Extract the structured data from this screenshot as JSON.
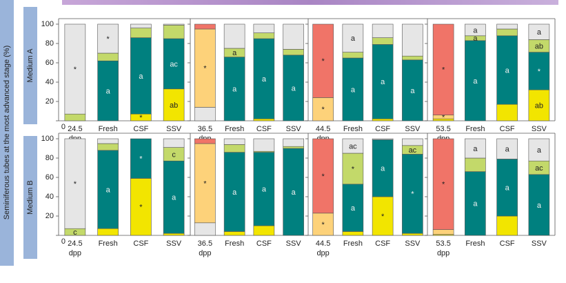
{
  "figure": {
    "y_label": "Seminiferous tubes at the most advanced stage (%)",
    "rows": [
      "Medium A",
      "Medium B"
    ]
  },
  "chart_data": [
    {
      "type": "bar",
      "stacked": true,
      "categories": [
        "24.5 dpp",
        "Fresh",
        "CSF",
        "SSV"
      ],
      "ylim": [
        0,
        100
      ],
      "yticks": [
        0,
        20,
        40,
        60,
        80,
        100
      ],
      "series": [
        {
          "color": "#f2e500",
          "values": [
            0,
            0,
            7,
            33
          ],
          "notes": [
            null,
            null,
            "*",
            "ab"
          ]
        },
        {
          "color": "#e6e6e6",
          "values": [
            0,
            0,
            0,
            0
          ],
          "notes": [
            null,
            null,
            null,
            null
          ]
        },
        {
          "color": "#fdd27a",
          "values": [
            0,
            0,
            0,
            0
          ],
          "notes": [
            null,
            null,
            null,
            null
          ]
        },
        {
          "color": "#f07468",
          "values": [
            0,
            0,
            0,
            0
          ],
          "notes": [
            null,
            null,
            null,
            null
          ]
        },
        {
          "color": "#00807f",
          "values": [
            0,
            62,
            79,
            52
          ],
          "notes": [
            null,
            "a",
            "a",
            "ac"
          ]
        },
        {
          "color": "#c3d96a",
          "values": [
            7,
            8,
            10,
            14
          ],
          "notes": [
            null,
            null,
            null,
            null
          ]
        },
        {
          "color": "#e6e6e6",
          "values": [
            93,
            30,
            4,
            1
          ],
          "notes": [
            "*",
            "*",
            null,
            null
          ]
        }
      ]
    },
    {
      "type": "bar",
      "stacked": true,
      "categories": [
        "36.5 dpp",
        "Fresh",
        "CSF",
        "SSV"
      ],
      "ylim": [
        0,
        100
      ],
      "yticks": [
        0,
        20,
        40,
        60,
        80,
        100
      ],
      "series": [
        {
          "color": "#f2e500",
          "values": [
            0,
            0,
            2,
            0
          ],
          "notes": [
            null,
            null,
            null,
            null
          ]
        },
        {
          "color": "#e6e6e6",
          "values": [
            14,
            0,
            0,
            0
          ],
          "notes": [
            null,
            null,
            null,
            null
          ]
        },
        {
          "color": "#fdd27a",
          "values": [
            81,
            0,
            0,
            0
          ],
          "notes": [
            "*",
            null,
            null,
            null
          ]
        },
        {
          "color": "#f07468",
          "values": [
            5,
            0,
            0,
            0
          ],
          "notes": [
            null,
            null,
            null,
            null
          ]
        },
        {
          "color": "#00807f",
          "values": [
            0,
            66,
            83,
            68
          ],
          "notes": [
            null,
            "a",
            "a",
            "a"
          ]
        },
        {
          "color": "#c3d96a",
          "values": [
            0,
            9,
            6,
            6
          ],
          "notes": [
            null,
            "a",
            null,
            null
          ]
        },
        {
          "color": "#e6e6e6",
          "values": [
            0,
            25,
            9,
            26
          ],
          "notes": [
            null,
            null,
            null,
            null
          ]
        }
      ]
    },
    {
      "type": "bar",
      "stacked": true,
      "categories": [
        "44.5 dpp",
        "Fresh",
        "CSF",
        "SSV"
      ],
      "ylim": [
        0,
        100
      ],
      "yticks": [
        0,
        20,
        40,
        60,
        80,
        100
      ],
      "series": [
        {
          "color": "#f2e500",
          "values": [
            0,
            0,
            2,
            0
          ],
          "notes": [
            null,
            null,
            null,
            null
          ]
        },
        {
          "color": "#e6e6e6",
          "values": [
            0,
            0,
            0,
            0
          ],
          "notes": [
            null,
            null,
            null,
            null
          ]
        },
        {
          "color": "#fdd27a",
          "values": [
            24,
            0,
            0,
            0
          ],
          "notes": [
            "*",
            null,
            null,
            null
          ]
        },
        {
          "color": "#f07468",
          "values": [
            76,
            0,
            0,
            0
          ],
          "notes": [
            "*",
            null,
            null,
            null
          ]
        },
        {
          "color": "#00807f",
          "values": [
            0,
            65,
            77,
            63
          ],
          "notes": [
            null,
            "a",
            "a",
            "a"
          ]
        },
        {
          "color": "#c3d96a",
          "values": [
            0,
            6,
            7,
            4
          ],
          "notes": [
            null,
            null,
            null,
            null
          ]
        },
        {
          "color": "#e6e6e6",
          "values": [
            0,
            29,
            14,
            33
          ],
          "notes": [
            null,
            "a",
            null,
            null
          ]
        }
      ]
    },
    {
      "type": "bar",
      "stacked": true,
      "categories": [
        "53.5 dpp",
        "Fresh",
        "CSF",
        "SSV"
      ],
      "ylim": [
        0,
        100
      ],
      "yticks": [
        0,
        20,
        40,
        60,
        80,
        100
      ],
      "series": [
        {
          "color": "#f2e500",
          "values": [
            2,
            0,
            17,
            32
          ],
          "notes": [
            null,
            null,
            null,
            "ab"
          ]
        },
        {
          "color": "#e6e6e6",
          "values": [
            0,
            0,
            0,
            0
          ],
          "notes": [
            null,
            null,
            null,
            null
          ]
        },
        {
          "color": "#fdd27a",
          "values": [
            4,
            0,
            0,
            0
          ],
          "notes": [
            "*",
            null,
            null,
            null
          ]
        },
        {
          "color": "#f07468",
          "values": [
            94,
            0,
            0,
            0
          ],
          "notes": [
            "*",
            null,
            null,
            null
          ]
        },
        {
          "color": "#00807f",
          "values": [
            0,
            83,
            71,
            39
          ],
          "notes": [
            null,
            "a",
            "a",
            "*"
          ]
        },
        {
          "color": "#c3d96a",
          "values": [
            0,
            5,
            7,
            13
          ],
          "notes": [
            null,
            "a",
            null,
            "ab"
          ]
        },
        {
          "color": "#e6e6e6",
          "values": [
            0,
            12,
            5,
            16
          ],
          "notes": [
            null,
            "a",
            null,
            "a"
          ]
        }
      ]
    },
    {
      "type": "bar",
      "stacked": true,
      "categories": [
        "24.5 dpp",
        "Fresh",
        "CSF",
        "SSV"
      ],
      "ylim": [
        0,
        100
      ],
      "yticks": [
        0,
        20,
        40,
        60,
        80,
        100
      ],
      "series": [
        {
          "color": "#f2e500",
          "values": [
            0,
            7,
            59,
            2
          ],
          "notes": [
            null,
            null,
            "*",
            null
          ]
        },
        {
          "color": "#e6e6e6",
          "values": [
            0,
            0,
            0,
            0
          ],
          "notes": [
            null,
            null,
            null,
            null
          ]
        },
        {
          "color": "#fdd27a",
          "values": [
            0,
            0,
            0,
            0
          ],
          "notes": [
            null,
            null,
            null,
            null
          ]
        },
        {
          "color": "#f07468",
          "values": [
            0,
            0,
            0,
            0
          ],
          "notes": [
            null,
            null,
            null,
            null
          ]
        },
        {
          "color": "#00807f",
          "values": [
            0,
            81,
            41,
            75
          ],
          "notes": [
            null,
            "a",
            "*",
            "a"
          ]
        },
        {
          "color": "#c3d96a",
          "values": [
            7,
            7,
            0,
            14
          ],
          "notes": [
            "c",
            null,
            null,
            "c"
          ]
        },
        {
          "color": "#e6e6e6",
          "values": [
            93,
            5,
            0,
            9
          ],
          "notes": [
            "*",
            null,
            null,
            null
          ]
        }
      ]
    },
    {
      "type": "bar",
      "stacked": true,
      "categories": [
        "36.5 dpp",
        "Fresh",
        "CSF",
        "SSV"
      ],
      "ylim": [
        0,
        100
      ],
      "yticks": [
        0,
        20,
        40,
        60,
        80,
        100
      ],
      "series": [
        {
          "color": "#f2e500",
          "values": [
            0,
            4,
            10,
            0
          ],
          "notes": [
            null,
            null,
            null,
            null
          ]
        },
        {
          "color": "#e6e6e6",
          "values": [
            13,
            0,
            0,
            0
          ],
          "notes": [
            null,
            null,
            null,
            null
          ]
        },
        {
          "color": "#fdd27a",
          "values": [
            82,
            0,
            0,
            0
          ],
          "notes": [
            "*",
            null,
            null,
            null
          ]
        },
        {
          "color": "#f07468",
          "values": [
            5,
            0,
            0,
            0
          ],
          "notes": [
            null,
            null,
            null,
            null
          ]
        },
        {
          "color": "#00807f",
          "values": [
            0,
            82,
            76,
            90
          ],
          "notes": [
            null,
            "a",
            "a",
            "a"
          ]
        },
        {
          "color": "#c3d96a",
          "values": [
            0,
            8,
            1,
            2
          ],
          "notes": [
            null,
            null,
            null,
            null
          ]
        },
        {
          "color": "#e6e6e6",
          "values": [
            0,
            6,
            13,
            8
          ],
          "notes": [
            null,
            null,
            null,
            null
          ]
        }
      ]
    },
    {
      "type": "bar",
      "stacked": true,
      "categories": [
        "44.5 dpp",
        "Fresh",
        "CSF",
        "SSV"
      ],
      "ylim": [
        0,
        100
      ],
      "yticks": [
        0,
        20,
        40,
        60,
        80,
        100
      ],
      "series": [
        {
          "color": "#f2e500",
          "values": [
            0,
            4,
            40,
            2
          ],
          "notes": [
            null,
            null,
            "*",
            null
          ]
        },
        {
          "color": "#e6e6e6",
          "values": [
            0,
            0,
            0,
            0
          ],
          "notes": [
            null,
            null,
            null,
            null
          ]
        },
        {
          "color": "#fdd27a",
          "values": [
            23,
            0,
            0,
            0
          ],
          "notes": [
            "*",
            null,
            null,
            null
          ]
        },
        {
          "color": "#f07468",
          "values": [
            77,
            0,
            0,
            0
          ],
          "notes": [
            "*",
            null,
            null,
            null
          ]
        },
        {
          "color": "#00807f",
          "values": [
            0,
            49,
            59,
            82
          ],
          "notes": [
            null,
            "a",
            "a",
            "*"
          ]
        },
        {
          "color": "#c3d96a",
          "values": [
            0,
            32,
            0,
            9
          ],
          "notes": [
            null,
            "*",
            null,
            "ac"
          ]
        },
        {
          "color": "#e6e6e6",
          "values": [
            0,
            15,
            1,
            7
          ],
          "notes": [
            null,
            "ac",
            null,
            null
          ]
        }
      ]
    },
    {
      "type": "bar",
      "stacked": true,
      "categories": [
        "53.5 dpp",
        "Fresh",
        "CSF",
        "SSV"
      ],
      "ylim": [
        0,
        100
      ],
      "yticks": [
        0,
        20,
        40,
        60,
        80,
        100
      ],
      "series": [
        {
          "color": "#f2e500",
          "values": [
            1,
            0,
            20,
            0
          ],
          "notes": [
            null,
            null,
            null,
            null
          ]
        },
        {
          "color": "#e6e6e6",
          "values": [
            0,
            0,
            0,
            0
          ],
          "notes": [
            null,
            null,
            null,
            null
          ]
        },
        {
          "color": "#fdd27a",
          "values": [
            5,
            0,
            0,
            0
          ],
          "notes": [
            null,
            null,
            null,
            null
          ]
        },
        {
          "color": "#f07468",
          "values": [
            94,
            0,
            0,
            0
          ],
          "notes": [
            "*",
            null,
            null,
            null
          ]
        },
        {
          "color": "#00807f",
          "values": [
            0,
            66,
            59,
            63
          ],
          "notes": [
            null,
            "a",
            "a",
            "a"
          ]
        },
        {
          "color": "#c3d96a",
          "values": [
            0,
            14,
            0,
            14
          ],
          "notes": [
            null,
            null,
            null,
            "ac"
          ]
        },
        {
          "color": "#e6e6e6",
          "values": [
            0,
            20,
            21,
            23
          ],
          "notes": [
            null,
            "a",
            "a",
            "a"
          ]
        }
      ]
    }
  ]
}
